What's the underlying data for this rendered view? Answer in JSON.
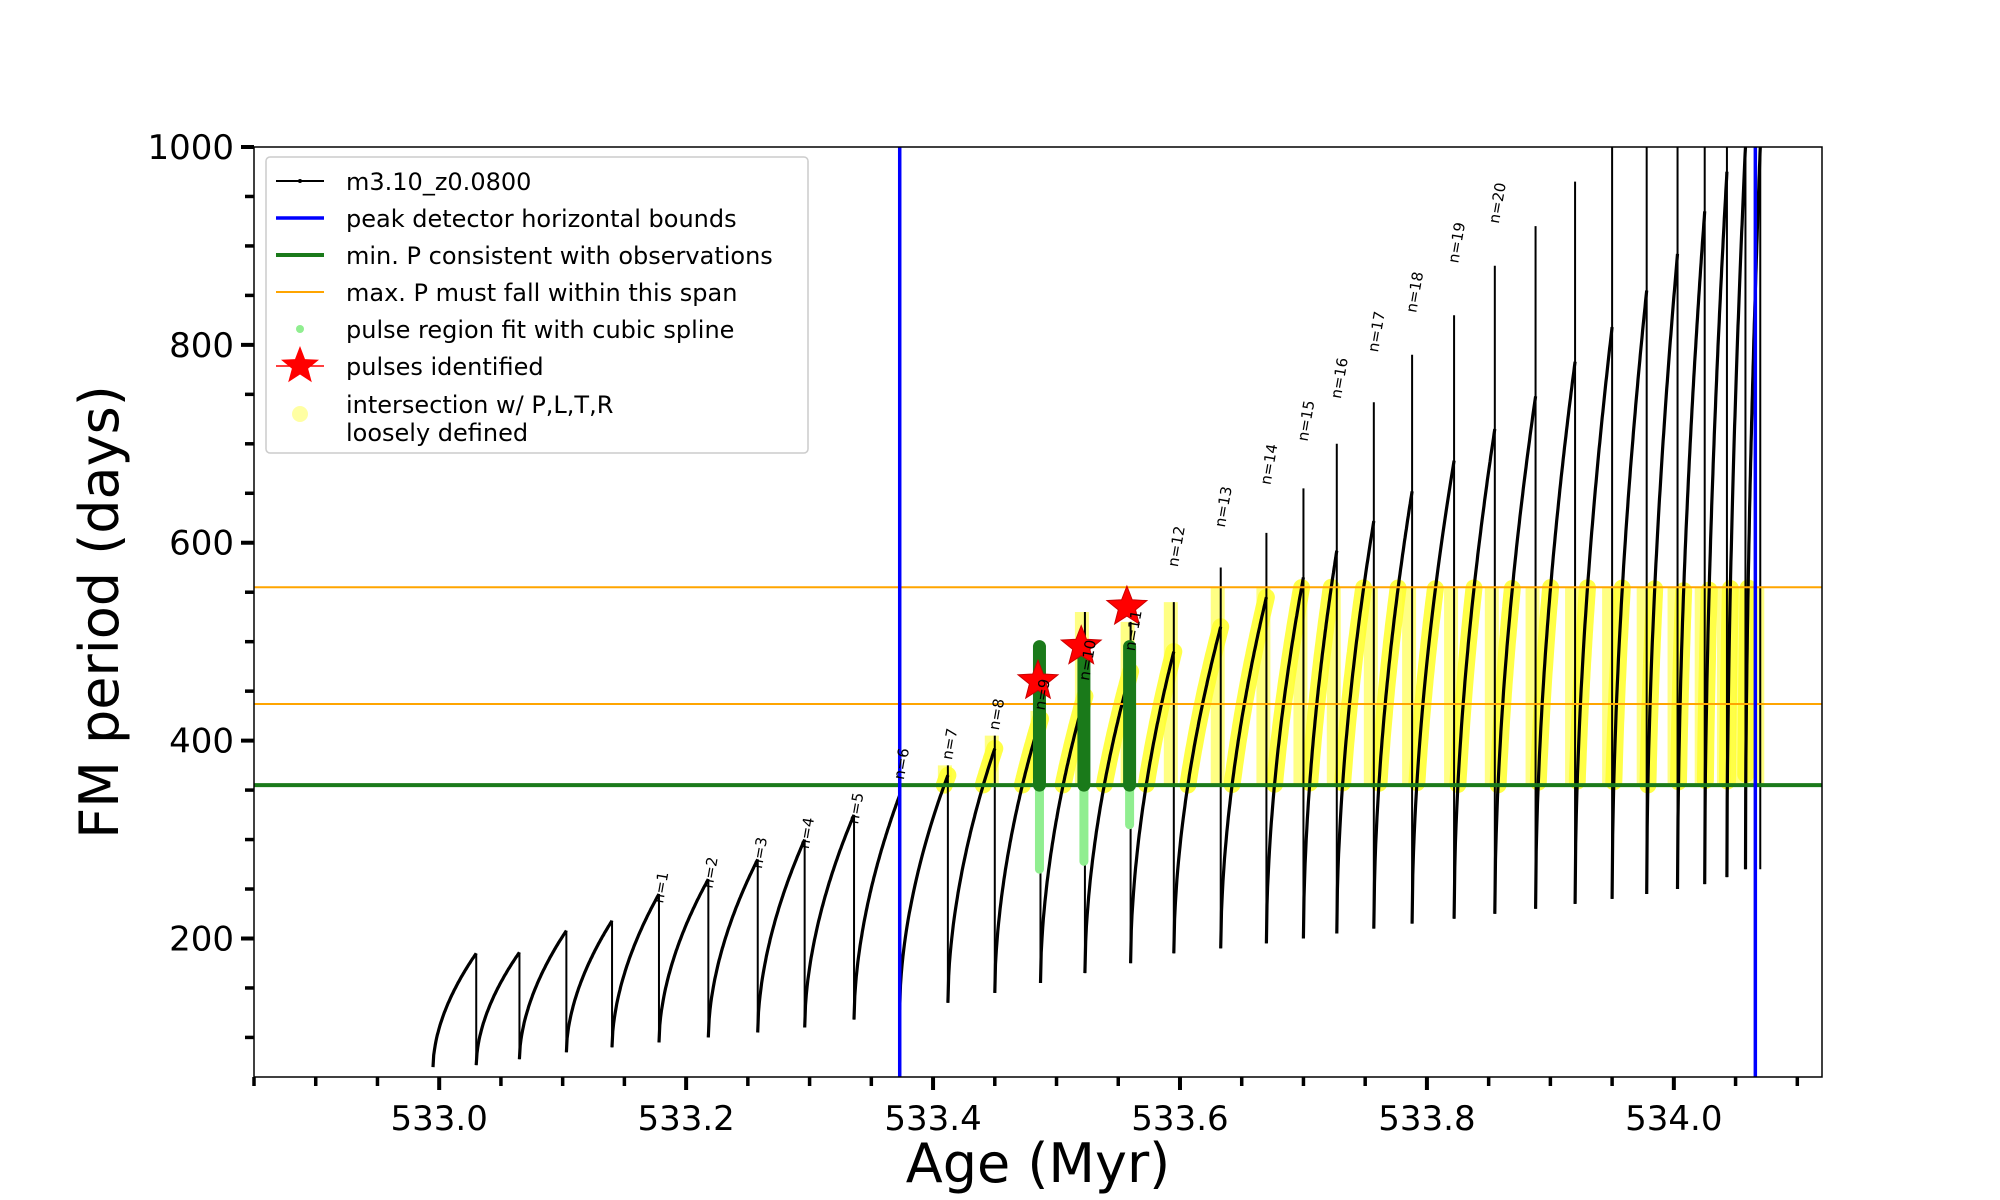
{
  "chart_data": {
    "type": "line",
    "title": "",
    "xlabel": "Age (Myr)",
    "ylabel": "FM period (days)",
    "xlim": [
      532.85,
      534.12
    ],
    "ylim": [
      60,
      1000
    ],
    "xticks": [
      533.0,
      533.2,
      533.4,
      533.6,
      533.8,
      534.0
    ],
    "xtick_labels": [
      "533.0",
      "533.2",
      "533.4",
      "533.6",
      "533.8",
      "534.0"
    ],
    "yticks": [
      200,
      400,
      600,
      800,
      1000
    ],
    "ytick_labels": [
      "200",
      "400",
      "600",
      "800",
      "1000"
    ],
    "grid": false,
    "legend_position": "top-left",
    "colors": {
      "model": "#000000",
      "bounds": "#0000ff",
      "min_p": "#1a7a1a",
      "max_p": "#ffa500",
      "spline": "#90ee90",
      "star": "#ff0000",
      "intersection": "#ffff33"
    },
    "series": [
      {
        "name": "m3.10_z0.0800",
        "kind": "pulse-cycles",
        "cycles": [
          {
            "start": 532.995,
            "end": 533.03,
            "min": 70,
            "max": 185,
            "spike": null
          },
          {
            "start": 533.03,
            "end": 533.065,
            "min": 72,
            "max": 186,
            "spike": null
          },
          {
            "start": 533.065,
            "end": 533.103,
            "min": 78,
            "max": 208,
            "spike": null
          },
          {
            "start": 533.103,
            "end": 533.14,
            "min": 85,
            "max": 218,
            "spike": null
          },
          {
            "start": 533.14,
            "end": 533.178,
            "min": 90,
            "max": 245,
            "spike": null
          },
          {
            "start": 533.178,
            "end": 533.218,
            "min": 95,
            "max": 260,
            "spike": null
          },
          {
            "start": 533.218,
            "end": 533.258,
            "min": 100,
            "max": 280,
            "spike": null
          },
          {
            "start": 533.258,
            "end": 533.296,
            "min": 105,
            "max": 300,
            "spike": null
          },
          {
            "start": 533.296,
            "end": 533.336,
            "min": 110,
            "max": 325,
            "spike": null
          },
          {
            "start": 533.336,
            "end": 533.373,
            "min": 118,
            "max": 345,
            "spike": null
          },
          {
            "start": 533.373,
            "end": 533.412,
            "min": 128,
            "max": 365,
            "spike": 375
          },
          {
            "start": 533.412,
            "end": 533.45,
            "min": 135,
            "max": 392,
            "spike": 405
          },
          {
            "start": 533.45,
            "end": 533.487,
            "min": 145,
            "max": 422,
            "spike": 430
          },
          {
            "start": 533.487,
            "end": 533.523,
            "min": 155,
            "max": 445,
            "spike": 530
          },
          {
            "start": 533.523,
            "end": 533.56,
            "min": 165,
            "max": 470,
            "spike": 520
          },
          {
            "start": 533.56,
            "end": 533.595,
            "min": 175,
            "max": 490,
            "spike": 540
          },
          {
            "start": 533.595,
            "end": 533.633,
            "min": 185,
            "max": 515,
            "spike": 575
          },
          {
            "start": 533.633,
            "end": 533.67,
            "min": 190,
            "max": 545,
            "spike": 610
          },
          {
            "start": 533.67,
            "end": 533.7,
            "min": 195,
            "max": 565,
            "spike": 655
          },
          {
            "start": 533.7,
            "end": 533.727,
            "min": 200,
            "max": 592,
            "spike": 700
          },
          {
            "start": 533.727,
            "end": 533.757,
            "min": 205,
            "max": 622,
            "spike": 742
          },
          {
            "start": 533.757,
            "end": 533.788,
            "min": 210,
            "max": 652,
            "spike": 790
          },
          {
            "start": 533.788,
            "end": 533.822,
            "min": 215,
            "max": 683,
            "spike": 830
          },
          {
            "start": 533.822,
            "end": 533.855,
            "min": 220,
            "max": 715,
            "spike": 880
          },
          {
            "start": 533.855,
            "end": 533.888,
            "min": 225,
            "max": 748,
            "spike": 920
          },
          {
            "start": 533.888,
            "end": 533.92,
            "min": 230,
            "max": 783,
            "spike": 965
          },
          {
            "start": 533.92,
            "end": 533.95,
            "min": 235,
            "max": 818,
            "spike": 1000
          },
          {
            "start": 533.95,
            "end": 533.978,
            "min": 240,
            "max": 855,
            "spike": 1000
          },
          {
            "start": 533.978,
            "end": 534.003,
            "min": 245,
            "max": 892,
            "spike": 1000
          },
          {
            "start": 534.003,
            "end": 534.025,
            "min": 250,
            "max": 935,
            "spike": 1000
          },
          {
            "start": 534.025,
            "end": 534.043,
            "min": 255,
            "max": 975,
            "spike": 1000
          },
          {
            "start": 534.043,
            "end": 534.058,
            "min": 262,
            "max": 1000,
            "spike": 1000
          },
          {
            "start": 534.058,
            "end": 534.07,
            "min": 270,
            "max": 1000,
            "spike": 1000
          }
        ]
      },
      {
        "name": "peak detector horizontal bounds",
        "kind": "vline",
        "x": [
          533.373,
          534.066
        ]
      },
      {
        "name": "min. P consistent with observations",
        "kind": "hline",
        "y": [
          355
        ]
      },
      {
        "name": "max. P must fall within this span",
        "kind": "hline",
        "y": [
          437,
          555
        ]
      },
      {
        "name": "pulse region fit with cubic spline",
        "kind": "spline-fit",
        "cycles": [
          {
            "x": 533.487,
            "min": 270,
            "max": 495
          },
          {
            "x": 533.523,
            "min": 278,
            "max": 495
          },
          {
            "x": 533.56,
            "min": 315,
            "max": 495
          }
        ]
      },
      {
        "name": "pulses identified",
        "kind": "stars",
        "points": [
          {
            "x": 533.485,
            "y": 460
          },
          {
            "x": 533.52,
            "y": 495
          },
          {
            "x": 533.557,
            "y": 535
          }
        ]
      },
      {
        "name": "intersection w/ P,L,T,R\nloosely defined",
        "kind": "highlight",
        "ymin": 355,
        "ymax": 555
      }
    ],
    "pulse_labels": [
      {
        "text": "n=1",
        "x": 533.178,
        "y": 235
      },
      {
        "text": "n=2",
        "x": 533.218,
        "y": 250
      },
      {
        "text": "n=3",
        "x": 533.258,
        "y": 270
      },
      {
        "text": "n=4",
        "x": 533.296,
        "y": 290
      },
      {
        "text": "n=5",
        "x": 533.336,
        "y": 315
      },
      {
        "text": "n=6",
        "x": 533.373,
        "y": 360
      },
      {
        "text": "n=7",
        "x": 533.412,
        "y": 380
      },
      {
        "text": "n=8",
        "x": 533.45,
        "y": 410
      },
      {
        "text": "n=9",
        "x": 533.487,
        "y": 430
      },
      {
        "text": "n=10",
        "x": 533.523,
        "y": 460
      },
      {
        "text": "n=11",
        "x": 533.56,
        "y": 490
      },
      {
        "text": "n=12",
        "x": 533.595,
        "y": 575
      },
      {
        "text": "n=13",
        "x": 533.633,
        "y": 615
      },
      {
        "text": "n=14",
        "x": 533.67,
        "y": 658
      },
      {
        "text": "n=15",
        "x": 533.7,
        "y": 702
      },
      {
        "text": "n=16",
        "x": 533.727,
        "y": 745
      },
      {
        "text": "n=17",
        "x": 533.757,
        "y": 792
      },
      {
        "text": "n=18",
        "x": 533.788,
        "y": 832
      },
      {
        "text": "n=19",
        "x": 533.822,
        "y": 882
      },
      {
        "text": "n=20",
        "x": 533.855,
        "y": 922
      }
    ]
  }
}
